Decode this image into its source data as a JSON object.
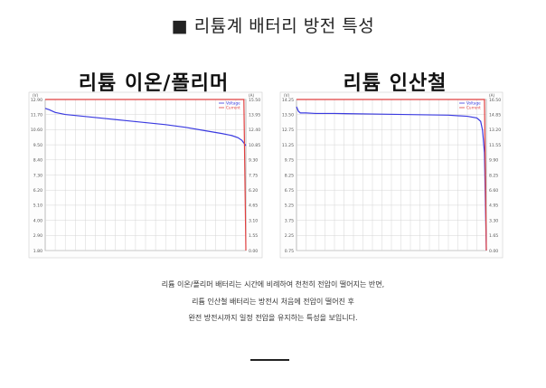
{
  "title": "■ 리튬계 배터리 방전 특성",
  "description": [
    "리튬 이온/폴리머 배터리는 시간에 비례하여 천천히 전압이 떨어지는 반면,",
    "리튬 인산철 배터리는 방전시 처음에 전압이 떨어진 후",
    "완전 방전시까지 일정 전압을 유지하는 특성을 보입니다."
  ],
  "colors": {
    "voltage": "#3a3ae0",
    "current": "#e04040",
    "grid": "#d4d4d4",
    "frame": "#aaaaaa"
  },
  "chart_data": [
    {
      "type": "line",
      "title": "리튬 이온/폴리머",
      "y_left_unit": "(V)",
      "y_right_unit": "(A)",
      "y_left_ticks": [
        "12.90",
        "11.70",
        "10.60",
        "9.50",
        "8.40",
        "7.30",
        "6.20",
        "5.10",
        "4.00",
        "2.90",
        "1.80"
      ],
      "y_right_ticks": [
        "15.50",
        "13.95",
        "12.40",
        "10.85",
        "9.30",
        "7.75",
        "6.20",
        "4.65",
        "3.10",
        "1.55",
        "0.00"
      ],
      "legend": [
        "Voltage",
        "Current"
      ],
      "x": [
        0,
        2,
        5,
        10,
        20,
        30,
        40,
        50,
        60,
        70,
        80,
        88,
        93,
        96,
        98,
        99,
        100
      ],
      "series": [
        {
          "name": "Voltage",
          "axis": "left",
          "values": [
            12.25,
            12.15,
            11.95,
            11.8,
            11.65,
            11.5,
            11.35,
            11.2,
            11.05,
            10.85,
            10.6,
            10.4,
            10.25,
            10.1,
            9.9,
            9.7,
            9.5
          ]
        },
        {
          "name": "Current",
          "axis": "right",
          "values": [
            15.5,
            15.5,
            15.5,
            15.5,
            15.5,
            15.5,
            15.5,
            15.5,
            15.5,
            15.5,
            15.5,
            15.5,
            15.5,
            15.5,
            15.5,
            15.5,
            0
          ]
        }
      ],
      "ylim_left": [
        1.8,
        12.9
      ],
      "ylim_right": [
        0,
        15.5
      ],
      "grid": true
    },
    {
      "type": "line",
      "title": "리튬 인산철",
      "y_left_unit": "(V)",
      "y_right_unit": "(A)",
      "y_left_ticks": [
        "14.25",
        "13.50",
        "12.75",
        "11.25",
        "9.75",
        "8.25",
        "6.75",
        "5.25",
        "3.75",
        "2.25",
        "0.75"
      ],
      "y_right_ticks": [
        "16.50",
        "14.85",
        "13.20",
        "11.55",
        "9.90",
        "8.25",
        "6.60",
        "4.95",
        "3.30",
        "1.65",
        "0.00"
      ],
      "legend": [
        "Voltage",
        "Current"
      ],
      "x": [
        0,
        1,
        2,
        5,
        10,
        20,
        40,
        60,
        80,
        90,
        95,
        97,
        98,
        99,
        100
      ],
      "series": [
        {
          "name": "Voltage",
          "axis": "left",
          "values": [
            13.6,
            13.2,
            13.05,
            13.05,
            13.0,
            13.0,
            12.95,
            12.9,
            12.85,
            12.75,
            12.6,
            12.3,
            11.5,
            9.5,
            0.75
          ]
        },
        {
          "name": "Current",
          "axis": "right",
          "values": [
            16.5,
            16.5,
            16.5,
            16.5,
            16.5,
            16.5,
            16.5,
            16.5,
            16.5,
            16.5,
            16.5,
            16.5,
            16.5,
            16.5,
            0
          ]
        }
      ],
      "ylim_left": [
        0.75,
        14.25
      ],
      "ylim_right": [
        0,
        16.5
      ],
      "grid": true
    }
  ]
}
